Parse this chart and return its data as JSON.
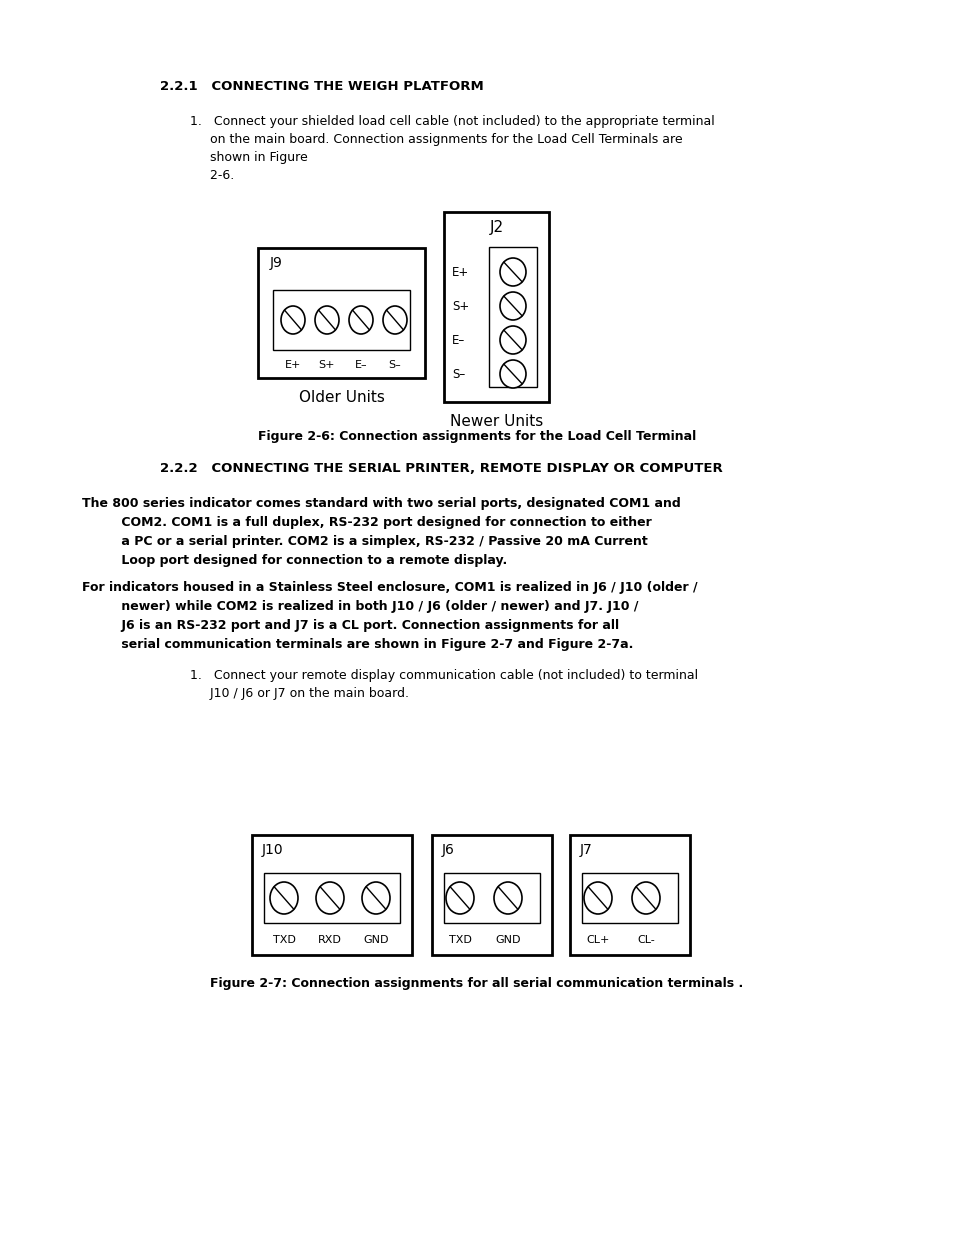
{
  "bg_color": "#ffffff",
  "page_width": 9.54,
  "page_height": 12.35,
  "section_221_title": "2.2.1   CONNECTING THE WEIGH PLATFORM",
  "para1_lines": [
    "1.   Connect your shielded load cell cable (not included) to the appropriate terminal",
    "     on the main board. Connection assignments for the Load Cell Terminals are",
    "     shown in Figure",
    "     2-6."
  ],
  "fig26_caption": "Figure 2-6: Connection assignments for the Load Cell Terminal",
  "older_units_label": "Older Units",
  "newer_units_label": "Newer Units",
  "section_222_title": "2.2.2   CONNECTING THE SERIAL PRINTER, REMOTE DISPLAY OR COMPUTER",
  "para2_lines": [
    "The 800 series indicator comes standard with two serial ports, designated COM1 and",
    "         COM2. COM1 is a full duplex, RS-232 port designed for connection to either",
    "         a PC or a serial printer. COM2 is a simplex, RS-232 / Passive 20 mA Current",
    "         Loop port designed for connection to a remote display."
  ],
  "para3_lines": [
    "For indicators housed in a Stainless Steel enclosure, COM1 is realized in J6 / J10 (older /",
    "         newer) while COM2 is realized in both J10 / J6 (older / newer) and J7. J10 /",
    "         J6 is an RS-232 port and J7 is a CL port. Connection assignments for all",
    "         serial communication terminals are shown in Figure 2-7 and Figure 2-7a."
  ],
  "para4_lines": [
    "1.   Connect your remote display communication cable (not included) to terminal",
    "     J10 / J6 or J7 on the main board."
  ],
  "fig27_caption": "Figure 2-7: Connection assignments for all serial communication terminals .",
  "j9_label": "J9",
  "j9_pins": [
    "E+",
    "S+",
    "E–",
    "S–"
  ],
  "j2_label": "J2",
  "j2_pins": [
    "E+",
    "S+",
    "E–",
    "S–"
  ],
  "j10_label": "J10",
  "j10_pins": [
    "TXD",
    "RXD",
    "GND"
  ],
  "j6_label": "J6",
  "j6_pins": [
    "TXD",
    "GND"
  ],
  "j7_label": "J7",
  "j7_pins": [
    "CL+",
    "CL-"
  ]
}
